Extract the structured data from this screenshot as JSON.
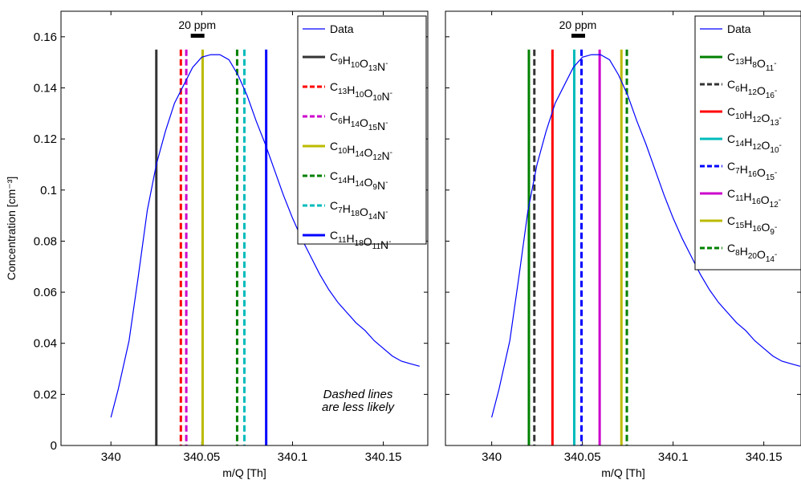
{
  "chart_data": [
    {
      "type": "line",
      "ylabel": "Concentration [cm⁻³]",
      "xlabel": "m/Q [Th]",
      "xlim": [
        340.0,
        340.17
      ],
      "ylim": [
        0,
        0.17
      ],
      "xticks": [
        340,
        340.05,
        340.1,
        340.15
      ],
      "xtick_labels": [
        "340",
        "340.05",
        "340.1",
        "340.15"
      ],
      "yticks": [
        0,
        0.02,
        0.04,
        0.06,
        0.08,
        0.1,
        0.12,
        0.14,
        0.16
      ],
      "ytick_labels": [
        "0",
        "0.02",
        "0.04",
        "0.06",
        "0.08",
        "0.1",
        "0.12",
        "0.14",
        "0.16"
      ],
      "scale_bar_label": "20 ppm",
      "annotation": [
        "Dashed lines",
        "are less likely"
      ],
      "legend_position": "top-right",
      "data_series": {
        "name": "Data",
        "color": "#0000ff",
        "x": [
          340.0,
          340.004,
          340.01,
          340.015,
          340.02,
          340.025,
          340.03,
          340.035,
          340.04,
          340.045,
          340.05,
          340.055,
          340.06,
          340.065,
          340.07,
          340.075,
          340.08,
          340.085,
          340.09,
          340.095,
          340.1,
          340.105,
          340.11,
          340.115,
          340.12,
          340.125,
          340.13,
          340.135,
          340.14,
          340.145,
          340.15,
          340.155,
          340.16,
          340.165,
          340.17
        ],
        "y": [
          0.011,
          0.022,
          0.041,
          0.066,
          0.092,
          0.11,
          0.123,
          0.134,
          0.141,
          0.148,
          0.152,
          0.153,
          0.153,
          0.151,
          0.145,
          0.137,
          0.127,
          0.118,
          0.108,
          0.098,
          0.089,
          0.081,
          0.074,
          0.067,
          0.061,
          0.056,
          0.052,
          0.048,
          0.045,
          0.041,
          0.038,
          0.035,
          0.033,
          0.032,
          0.031
        ]
      },
      "candidate_lines": [
        {
          "formula": [
            [
              "C",
              "9"
            ],
            [
              "H",
              "10"
            ],
            [
              "O",
              "13"
            ],
            [
              "N",
              "-"
            ]
          ],
          "x": 340.025,
          "color": "#333333",
          "style": "solid",
          "y_top": 0.155
        },
        {
          "formula": [
            [
              "C",
              "13"
            ],
            [
              "H",
              "10"
            ],
            [
              "O",
              "10"
            ],
            [
              "N",
              "-"
            ]
          ],
          "x": 340.0385,
          "color": "#ff0000",
          "style": "dashed",
          "y_top": 0.155
        },
        {
          "formula": [
            [
              "C",
              "6"
            ],
            [
              "H",
              "14"
            ],
            [
              "O",
              "15"
            ],
            [
              "N",
              "-"
            ]
          ],
          "x": 340.0415,
          "color": "#cc00cc",
          "style": "dashed",
          "y_top": 0.155
        },
        {
          "formula": [
            [
              "C",
              "10"
            ],
            [
              "H",
              "14"
            ],
            [
              "O",
              "12"
            ],
            [
              "N",
              "-"
            ]
          ],
          "x": 340.0505,
          "color": "#bbbb00",
          "style": "solid",
          "y_top": 0.155
        },
        {
          "formula": [
            [
              "C",
              "14"
            ],
            [
              "H",
              "14"
            ],
            [
              "O",
              "9"
            ],
            [
              "N",
              "-"
            ]
          ],
          "x": 340.0695,
          "color": "#008000",
          "style": "dashed",
          "y_top": 0.155
        },
        {
          "formula": [
            [
              "C",
              "7"
            ],
            [
              "H",
              "18"
            ],
            [
              "O",
              "14"
            ],
            [
              "N",
              "-"
            ]
          ],
          "x": 340.0735,
          "color": "#00bbbb",
          "style": "dashed",
          "y_top": 0.155
        },
        {
          "formula": [
            [
              "C",
              "11"
            ],
            [
              "H",
              "18"
            ],
            [
              "O",
              "11"
            ],
            [
              "N",
              "-"
            ]
          ],
          "x": 340.0855,
          "color": "#0000ff",
          "style": "solid",
          "y_top": 0.155
        }
      ]
    },
    {
      "type": "line",
      "ylabel": "",
      "xlabel": "m/Q [Th]",
      "xlim": [
        340.0,
        340.17
      ],
      "ylim": [
        0,
        0.17
      ],
      "xticks": [
        340,
        340.05,
        340.1,
        340.15
      ],
      "xtick_labels": [
        "340",
        "340.05",
        "340.1",
        "340.15"
      ],
      "yticks": [
        0,
        0.02,
        0.04,
        0.06,
        0.08,
        0.1,
        0.12,
        0.14,
        0.16
      ],
      "ytick_labels": [],
      "scale_bar_label": "20 ppm",
      "annotation": [],
      "legend_position": "top-right",
      "data_series": {
        "name": "Data",
        "color": "#0000ff",
        "x": [
          340.0,
          340.004,
          340.01,
          340.015,
          340.02,
          340.025,
          340.03,
          340.035,
          340.04,
          340.045,
          340.05,
          340.055,
          340.06,
          340.065,
          340.07,
          340.075,
          340.08,
          340.085,
          340.09,
          340.095,
          340.1,
          340.105,
          340.11,
          340.115,
          340.12,
          340.125,
          340.13,
          340.135,
          340.14,
          340.145,
          340.15,
          340.155,
          340.16,
          340.165,
          340.17
        ],
        "y": [
          0.011,
          0.022,
          0.041,
          0.066,
          0.092,
          0.11,
          0.123,
          0.134,
          0.141,
          0.148,
          0.152,
          0.153,
          0.153,
          0.151,
          0.145,
          0.137,
          0.127,
          0.118,
          0.108,
          0.098,
          0.089,
          0.081,
          0.074,
          0.067,
          0.061,
          0.056,
          0.052,
          0.048,
          0.045,
          0.041,
          0.038,
          0.035,
          0.033,
          0.032,
          0.031
        ]
      },
      "candidate_lines": [
        {
          "formula": [
            [
              "C",
              "13"
            ],
            [
              "H",
              "8"
            ],
            [
              "O",
              "11"
            ],
            [
              "",
              "-"
            ]
          ],
          "x": 340.0205,
          "color": "#008000",
          "style": "solid",
          "y_top": 0.155
        },
        {
          "formula": [
            [
              "C",
              "6"
            ],
            [
              "H",
              "12"
            ],
            [
              "O",
              "16"
            ],
            [
              "",
              "-"
            ]
          ],
          "x": 340.0235,
          "color": "#333333",
          "style": "dashed",
          "y_top": 0.155
        },
        {
          "formula": [
            [
              "C",
              "10"
            ],
            [
              "H",
              "12"
            ],
            [
              "O",
              "13"
            ],
            [
              "",
              "-"
            ]
          ],
          "x": 340.0335,
          "color": "#ff0000",
          "style": "solid",
          "y_top": 0.155
        },
        {
          "formula": [
            [
              "C",
              "14"
            ],
            [
              "H",
              "12"
            ],
            [
              "O",
              "10"
            ],
            [
              "",
              "-"
            ]
          ],
          "x": 340.0455,
          "color": "#00bbbb",
          "style": "solid",
          "y_top": 0.155
        },
        {
          "formula": [
            [
              "C",
              "7"
            ],
            [
              "H",
              "16"
            ],
            [
              "O",
              "15"
            ],
            [
              "",
              "-"
            ]
          ],
          "x": 340.0495,
          "color": "#0000ff",
          "style": "dashed",
          "y_top": 0.155
        },
        {
          "formula": [
            [
              "C",
              "11"
            ],
            [
              "H",
              "16"
            ],
            [
              "O",
              "12"
            ],
            [
              "",
              "-"
            ]
          ],
          "x": 340.0595,
          "color": "#cc00cc",
          "style": "solid",
          "y_top": 0.155
        },
        {
          "formula": [
            [
              "C",
              "15"
            ],
            [
              "H",
              "16"
            ],
            [
              "O",
              "9"
            ],
            [
              "",
              "-"
            ]
          ],
          "x": 340.0715,
          "color": "#bbbb00",
          "style": "solid",
          "y_top": 0.155
        },
        {
          "formula": [
            [
              "C",
              "8"
            ],
            [
              "H",
              "20"
            ],
            [
              "O",
              "14"
            ],
            [
              "",
              "-"
            ]
          ],
          "x": 340.0745,
          "color": "#008000",
          "style": "dashed",
          "y_top": 0.155
        }
      ]
    }
  ]
}
